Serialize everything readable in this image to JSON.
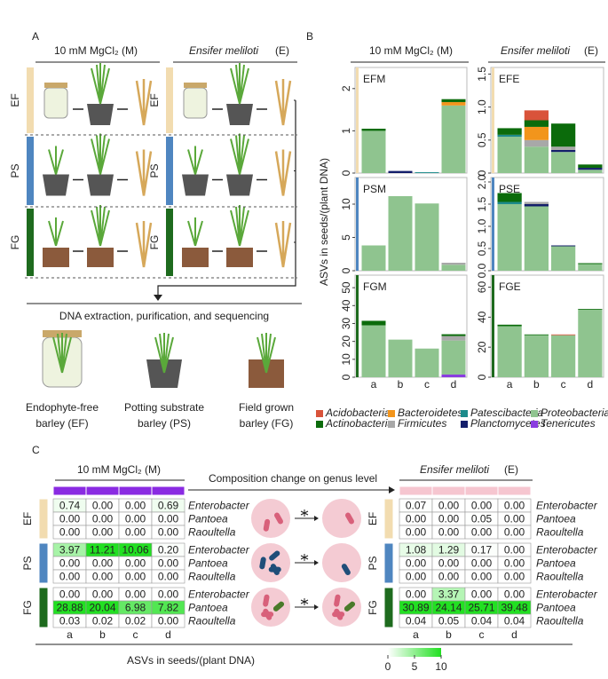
{
  "panel_a": {
    "label": "A",
    "mock_title": "10 mM MgCl₂ (M)",
    "ensifer_title": "Ensifer meliloti",
    "ensifer_suffix": "(E)",
    "rows": [
      "EF",
      "PS",
      "FG"
    ],
    "step": "DNA extraction, purification, and sequencing",
    "captions": [
      [
        "Endophyte-free",
        "barley (EF)"
      ],
      [
        "Potting substrate",
        "barley (PS)"
      ],
      [
        "Field grown",
        "barley (FG)"
      ]
    ]
  },
  "panel_b": {
    "label": "B",
    "mock_title": "10 mM MgCl₂ (M)",
    "ensifer_title": "Ensifer meliloti",
    "ensifer_suffix": "(E)",
    "y_label": "ASVs in seeds/(plant DNA)",
    "legend": [
      {
        "name": "Acidobacteria",
        "color": "#d9533a"
      },
      {
        "name": "Actinobacteria",
        "color": "#0b6b0b"
      },
      {
        "name": "Bacteroidetes",
        "color": "#f2951c"
      },
      {
        "name": "Firmicutes",
        "color": "#a8a8a8"
      },
      {
        "name": "Patescibacteria",
        "color": "#1c8a8a"
      },
      {
        "name": "Planctomycetes",
        "color": "#141f6b"
      },
      {
        "name": "Proteobacteria",
        "color": "#8fc48f"
      },
      {
        "name": "Tenericutes",
        "color": "#8a3de0"
      }
    ]
  },
  "chart_data": [
    {
      "type": "bar",
      "stacked": true,
      "title": "EFM",
      "strip_color": "#f2dcb0",
      "ylim": [
        0,
        2.5
      ],
      "yticks": [
        0,
        1,
        2
      ],
      "series": [
        {
          "name": "Proteobacteria",
          "color": "#8fc48f",
          "values": [
            1.0,
            0,
            0,
            1.6
          ]
        },
        {
          "name": "Planctomycetes",
          "color": "#141f6b",
          "values": [
            0,
            0.05,
            0,
            0
          ]
        },
        {
          "name": "Patescibacteria",
          "color": "#1c8a8a",
          "values": [
            0,
            0,
            0.02,
            0
          ]
        },
        {
          "name": "Bacteroidetes",
          "color": "#f2951c",
          "values": [
            0,
            0,
            0,
            0.08
          ]
        },
        {
          "name": "Actinobacteria",
          "color": "#0b6b0b",
          "values": [
            0.05,
            0,
            0,
            0.07
          ]
        }
      ]
    },
    {
      "type": "bar",
      "stacked": true,
      "title": "EFE",
      "strip_color": "#f2dcb0",
      "ylim": [
        0,
        1.6
      ],
      "yticks": [
        0,
        0.5,
        {
          "value": 1,
          "label": "1.0"
        },
        1.5
      ],
      "series": [
        {
          "name": "Proteobacteria",
          "color": "#8fc48f",
          "values": [
            0.55,
            0.4,
            0.32,
            0.05
          ]
        },
        {
          "name": "Planctomycetes",
          "color": "#141f6b",
          "values": [
            0,
            0,
            0.03,
            0.03
          ]
        },
        {
          "name": "Patescibacteria",
          "color": "#1c8a8a",
          "values": [
            0.03,
            0,
            0,
            0
          ]
        },
        {
          "name": "Firmicutes",
          "color": "#a8a8a8",
          "values": [
            0,
            0.1,
            0.05,
            0
          ]
        },
        {
          "name": "Bacteroidetes",
          "color": "#f2951c",
          "values": [
            0,
            0.2,
            0,
            0
          ]
        },
        {
          "name": "Actinobacteria",
          "color": "#0b6b0b",
          "values": [
            0.1,
            0.1,
            0.35,
            0.05
          ]
        },
        {
          "name": "Acidobacteria",
          "color": "#d9533a",
          "values": [
            0,
            0.15,
            0,
            0
          ]
        }
      ]
    },
    {
      "type": "bar",
      "stacked": true,
      "title": "PSM",
      "strip_color": "#4f86c0",
      "ylim": [
        0,
        14
      ],
      "yticks": [
        0,
        5,
        10
      ],
      "series": [
        {
          "name": "Proteobacteria",
          "color": "#8fc48f",
          "values": [
            3.8,
            11.2,
            10.1,
            0.9
          ]
        },
        {
          "name": "Firmicutes",
          "color": "#a8a8a8",
          "values": [
            0,
            0,
            0,
            0.3
          ]
        }
      ]
    },
    {
      "type": "bar",
      "stacked": true,
      "title": "PSE",
      "strip_color": "#4f86c0",
      "ylim": [
        0,
        2.1
      ],
      "yticks": [
        {
          "value": 0,
          "label": "0.0"
        },
        0.5,
        {
          "value": 1,
          "label": "1.0"
        },
        1.5,
        {
          "value": 2,
          "label": "2.0"
        }
      ],
      "series": [
        {
          "name": "Proteobacteria",
          "color": "#8fc48f",
          "values": [
            1.5,
            1.45,
            0.55,
            0.15
          ]
        },
        {
          "name": "Planctomycetes",
          "color": "#141f6b",
          "values": [
            0,
            0.05,
            0.02,
            0
          ]
        },
        {
          "name": "Patescibacteria",
          "color": "#1c8a8a",
          "values": [
            0.05,
            0,
            0,
            0
          ]
        },
        {
          "name": "Firmicutes",
          "color": "#a8a8a8",
          "values": [
            0,
            0.05,
            0,
            0
          ]
        },
        {
          "name": "Actinobacteria",
          "color": "#0b6b0b",
          "values": [
            0.2,
            0,
            0,
            0.02
          ]
        }
      ]
    },
    {
      "type": "bar",
      "stacked": true,
      "title": "FGM",
      "strip_color": "#1e6b1e",
      "categories": [
        "a",
        "b",
        "c",
        "d"
      ],
      "ylim": [
        0,
        57
      ],
      "yticks": [
        0,
        10,
        20,
        30,
        40,
        50
      ],
      "series": [
        {
          "name": "Tenericutes",
          "color": "#8a3de0",
          "values": [
            0,
            0,
            0,
            1.5
          ]
        },
        {
          "name": "Proteobacteria",
          "color": "#8fc48f",
          "values": [
            29,
            21,
            16,
            19
          ]
        },
        {
          "name": "Firmicutes",
          "color": "#a8a8a8",
          "values": [
            0,
            0,
            0,
            2.5
          ]
        },
        {
          "name": "Actinobacteria",
          "color": "#0b6b0b",
          "values": [
            2.5,
            0,
            0,
            1
          ]
        }
      ]
    },
    {
      "type": "bar",
      "stacked": true,
      "title": "FGE",
      "strip_color": "#1e6b1e",
      "categories": [
        "a",
        "b",
        "c",
        "d"
      ],
      "ylim": [
        0,
        68
      ],
      "yticks": [
        0,
        20,
        40,
        60
      ],
      "series": [
        {
          "name": "Proteobacteria",
          "color": "#8fc48f",
          "values": [
            34,
            28,
            28,
            45
          ]
        },
        {
          "name": "Actinobacteria",
          "color": "#0b6b0b",
          "values": [
            1,
            0.5,
            0,
            0.5
          ]
        },
        {
          "name": "Acidobacteria",
          "color": "#d9533a",
          "values": [
            0,
            0,
            0.5,
            0
          ]
        }
      ]
    }
  ],
  "panel_c": {
    "label": "C",
    "mock_title": "10 mM MgCl₂ (M)",
    "ensifer_title": "Ensifer meliloti",
    "ensifer_suffix": "(E)",
    "arrow_text": "Composition change on genus level",
    "groups": [
      "EF",
      "PS",
      "FG"
    ],
    "genera": [
      "Enterobacter",
      "Pantoea",
      "Raoultella"
    ],
    "columns": [
      "a",
      "b",
      "c",
      "d"
    ],
    "left": [
      [
        [
          "0.74",
          "0.00",
          "0.00",
          "0.69"
        ],
        [
          "0.00",
          "0.00",
          "0.00",
          "0.00"
        ],
        [
          "0.00",
          "0.00",
          "0.00",
          "0.00"
        ]
      ],
      [
        [
          "3.97",
          "11.21",
          "10.06",
          "0.20"
        ],
        [
          "0.00",
          "0.00",
          "0.00",
          "0.00"
        ],
        [
          "0.00",
          "0.00",
          "0.00",
          "0.00"
        ]
      ],
      [
        [
          "0.00",
          "0.00",
          "0.00",
          "0.00"
        ],
        [
          "28.88",
          "20.04",
          "6.98",
          "7.82"
        ],
        [
          "0.03",
          "0.02",
          "0.02",
          "0.00"
        ]
      ]
    ],
    "right": [
      [
        [
          "0.07",
          "0.00",
          "0.00",
          "0.00"
        ],
        [
          "0.00",
          "0.00",
          "0.05",
          "0.00"
        ],
        [
          "0.00",
          "0.00",
          "0.00",
          "0.00"
        ]
      ],
      [
        [
          "1.08",
          "1.29",
          "0.17",
          "0.00"
        ],
        [
          "0.00",
          "0.00",
          "0.00",
          "0.00"
        ],
        [
          "0.00",
          "0.00",
          "0.00",
          "0.00"
        ]
      ],
      [
        [
          "0.00",
          "3.37",
          "0.00",
          "0.00"
        ],
        [
          "30.89",
          "24.14",
          "25.71",
          "39.48"
        ],
        [
          "0.04",
          "0.05",
          "0.04",
          "0.04"
        ]
      ]
    ],
    "colorbar": {
      "title": "ASVs in seeds/(plant DNA)",
      "lim": [
        0,
        10
      ],
      "ticks": [
        0,
        5,
        10
      ],
      "colors": [
        "#ffffff",
        "#22e022"
      ]
    }
  }
}
